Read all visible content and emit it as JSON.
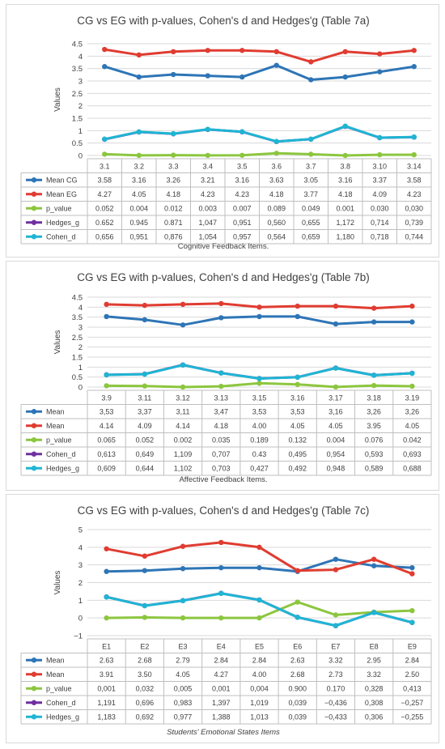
{
  "chart_data": [
    {
      "type": "line",
      "title": "CG vs EG with  p-values, Cohen's d and Hedges'g (Table 7a)",
      "ylabel": "Values",
      "xlabel": "Cognitive Feedback Items.",
      "ylim": [
        0,
        4.5
      ],
      "yticks": [
        "0",
        "0.5",
        "1",
        "1.5",
        "2",
        "2.5",
        "3",
        "3.5",
        "4",
        "4.5"
      ],
      "grid": true,
      "legend": "data table",
      "categories": [
        "3.1",
        "3.2",
        "3.3",
        "3.4",
        "3.5",
        "3.6",
        "3.7",
        "3.8",
        "3.10",
        "3.14"
      ],
      "series": [
        {
          "name": "Mean CG",
          "color": "#2e75b6",
          "values": [
            3.58,
            3.16,
            3.26,
            3.21,
            3.16,
            3.63,
            3.05,
            3.16,
            3.37,
            3.58
          ],
          "labels": [
            "3.58",
            "3.16",
            "3.26",
            "3.21",
            "3.16",
            "3.63",
            "3.05",
            "3.16",
            "3.37",
            "3.58"
          ]
        },
        {
          "name": "Mean EG",
          "color": "#e03c31",
          "values": [
            4.27,
            4.05,
            4.18,
            4.23,
            4.23,
            4.18,
            3.77,
            4.18,
            4.09,
            4.23
          ],
          "labels": [
            "4.27",
            "4.05",
            "4.18",
            "4.23",
            "4.23",
            "4.18",
            "3.77",
            "4.18",
            "4.09",
            "4.23"
          ]
        },
        {
          "name": "p_value",
          "color": "#8cc63f",
          "values": [
            0.052,
            0.004,
            0.012,
            0.003,
            0.007,
            0.089,
            0.049,
            0.001,
            0.03,
            0.03
          ],
          "labels": [
            "0.052",
            "0.004",
            "0.012",
            "0.003",
            "0.007",
            "0.089",
            "0.049",
            "0.001",
            "0.030",
            "0,030"
          ]
        },
        {
          "name": "Hedges_g",
          "color": "#7030a0",
          "values": [
            0.652,
            0.945,
            0.871,
            1.047,
            0.951,
            0.56,
            0.655,
            1.172,
            0.714,
            0.739
          ],
          "labels": [
            "0.652",
            "0.945",
            "0.871",
            "1,047",
            "0,951",
            "0,560",
            "0,655",
            "1,172",
            "0,714",
            "0,739"
          ]
        },
        {
          "name": "Cohen_d",
          "color": "#1fb5d3",
          "values": [
            0.656,
            0.951,
            0.876,
            1.054,
            0.957,
            0.564,
            0.659,
            1.18,
            0.718,
            0.744
          ],
          "labels": [
            "0,656",
            "0,951",
            "0,876",
            "1,054",
            "0,957",
            "0,564",
            "0,659",
            "1,180",
            "0,718",
            "0,744"
          ]
        }
      ]
    },
    {
      "type": "line",
      "title": "CG vs EG with  p-values, Cohen's d and Hedges'g (Table 7b)",
      "ylabel": "Values",
      "xlabel": "Affective Feedback Items.",
      "ylim": [
        0,
        4.5
      ],
      "yticks": [
        "0",
        "0.5",
        "1",
        "1.5",
        "2",
        "2.5",
        "3",
        "3.5",
        "4",
        "4.5"
      ],
      "grid": true,
      "legend": "data table",
      "categories": [
        "3.9",
        "3.11",
        "3.12",
        "3.13",
        "3.15",
        "3.16",
        "3.17",
        "3.18",
        "3.19"
      ],
      "series": [
        {
          "name": "Mean",
          "color": "#2e75b6",
          "values": [
            3.53,
            3.37,
            3.11,
            3.47,
            3.53,
            3.53,
            3.16,
            3.26,
            3.26
          ],
          "labels": [
            "3,53",
            "3,37",
            "3,11",
            "3,47",
            "3,53",
            "3,53",
            "3,16",
            "3,26",
            "3,26"
          ]
        },
        {
          "name": "Mean",
          "color": "#e03c31",
          "values": [
            4.14,
            4.09,
            4.14,
            4.18,
            4.0,
            4.05,
            4.05,
            3.95,
            4.05
          ],
          "labels": [
            "4.14",
            "4.09",
            "4.14",
            "4.18",
            "4.00",
            "4.05",
            "4.05",
            "3.95",
            "4.05"
          ]
        },
        {
          "name": "p_value",
          "color": "#8cc63f",
          "values": [
            0.065,
            0.052,
            0.002,
            0.035,
            0.189,
            0.132,
            0.004,
            0.076,
            0.042
          ],
          "labels": [
            "0.065",
            "0.052",
            "0.002",
            "0.035",
            "0.189",
            "0.132",
            "0.004",
            "0.076",
            "0.042"
          ]
        },
        {
          "name": "Cohen_d",
          "color": "#7030a0",
          "values": [
            0.613,
            0.649,
            1.109,
            0.707,
            0.43,
            0.495,
            0.954,
            0.593,
            0.693
          ],
          "labels": [
            "0,613",
            "0,649",
            "1,109",
            "0,707",
            "0.43",
            "0,495",
            "0,954",
            "0,593",
            "0,693"
          ]
        },
        {
          "name": "Hedges_g",
          "color": "#1fb5d3",
          "values": [
            0.609,
            0.644,
            1.102,
            0.703,
            0.427,
            0.492,
            0.948,
            0.589,
            0.688
          ],
          "labels": [
            "0,609",
            "0,644",
            "1,102",
            "0,703",
            "0,427",
            "0,492",
            "0,948",
            "0,589",
            "0,688"
          ]
        }
      ]
    },
    {
      "type": "line",
      "title": "CG vs EG with  p-values, Cohen's d and Hedges'g (Table 7c)",
      "ylabel": "Values",
      "xlabel": "Students' Emotional States Items",
      "ylim": [
        -1,
        5
      ],
      "yticks": [
        "−1",
        "0",
        "1",
        "2",
        "3",
        "4",
        "5"
      ],
      "grid": true,
      "legend": "data table",
      "categories": [
        "E1",
        "E2",
        "E3",
        "E4",
        "E5",
        "E6",
        "E7",
        "E8",
        "E9"
      ],
      "series": [
        {
          "name": "Mean",
          "color": "#2e75b6",
          "values": [
            2.63,
            2.68,
            2.79,
            2.84,
            2.84,
            2.63,
            3.32,
            2.95,
            2.84
          ],
          "labels": [
            "2.63",
            "2.68",
            "2.79",
            "2.84",
            "2.84",
            "2.63",
            "3.32",
            "2.95",
            "2.84"
          ]
        },
        {
          "name": "Mean",
          "color": "#e03c31",
          "values": [
            3.91,
            3.5,
            4.05,
            4.27,
            4.0,
            2.68,
            2.73,
            3.32,
            2.5
          ],
          "labels": [
            "3.91",
            "3.50",
            "4.05",
            "4.27",
            "4.00",
            "2.68",
            "2.73",
            "3.32",
            "2.50"
          ]
        },
        {
          "name": "p_value",
          "color": "#8cc63f",
          "values": [
            0.001,
            0.032,
            0.005,
            0.001,
            0.004,
            0.9,
            0.17,
            0.328,
            0.413
          ],
          "labels": [
            "0,001",
            "0,032",
            "0,005",
            "0,001",
            "0,004",
            "0.900",
            "0.170",
            "0,328",
            "0,413"
          ]
        },
        {
          "name": "Cohen_d",
          "color": "#7030a0",
          "values": [
            1.191,
            0.696,
            0.983,
            1.397,
            1.019,
            0.039,
            -0.436,
            0.308,
            -0.257
          ],
          "labels": [
            "1,191",
            "0,696",
            "0,983",
            "1,397",
            "1,019",
            "0,039",
            "−0,436",
            "0,308",
            "−0,257"
          ]
        },
        {
          "name": "Hedges_g",
          "color": "#1fb5d3",
          "values": [
            1.183,
            0.692,
            0.977,
            1.388,
            1.013,
            0.039,
            -0.433,
            0.306,
            -0.255
          ],
          "labels": [
            "1,183",
            "0,692",
            "0,977",
            "1,388",
            "1,013",
            "0,039",
            "−0,433",
            "0,306",
            "−0,255"
          ]
        }
      ]
    }
  ]
}
